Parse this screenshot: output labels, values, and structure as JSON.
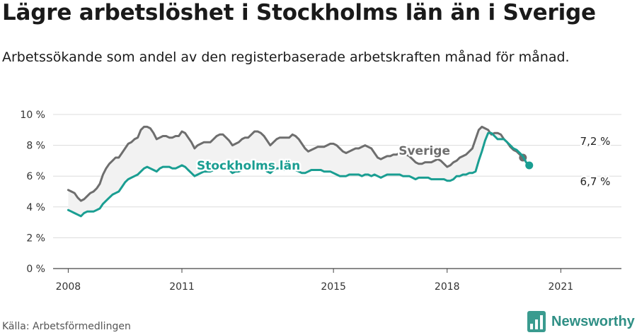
{
  "title": "Lägre arbetslöshet i Stockholms län än i Sverige",
  "subtitle": "Arbetssökande som andel av den registerbaserade arbetskraften månad för månad.",
  "source": "Källa: Arbetsförmedlingen",
  "brand": {
    "name": "Newsworthy",
    "icon": "bar-chart-logo-icon",
    "color": "#3a9b8f"
  },
  "chart_data": {
    "type": "line",
    "title": "Lägre arbetslöshet i Stockholms län än i Sverige",
    "xlabel": "",
    "ylabel": "",
    "xlim": [
      2007.6,
      2022.6
    ],
    "ylim": [
      0,
      10
    ],
    "x_ticks": [
      2008,
      2011,
      2015,
      2018,
      2021
    ],
    "x_tick_labels": [
      "2008",
      "2011",
      "2015",
      "2018",
      "2021"
    ],
    "y_ticks": [
      0,
      2,
      4,
      6,
      8,
      10
    ],
    "y_tick_labels": [
      "0 %",
      "2 %",
      "4 %",
      "6 %",
      "8 %",
      "10 %"
    ],
    "grid": true,
    "x_start": 2008.0,
    "x_step": 0.0833333,
    "series": [
      {
        "name": "Sverige",
        "label": "Sverige",
        "color": "#6e6e6e",
        "end_label": "7,2 %",
        "values": [
          5.1,
          5.0,
          4.9,
          4.6,
          4.4,
          4.5,
          4.7,
          4.9,
          5.0,
          5.2,
          5.5,
          6.1,
          6.5,
          6.8,
          7.0,
          7.2,
          7.2,
          7.5,
          7.8,
          8.1,
          8.2,
          8.4,
          8.5,
          9.0,
          9.2,
          9.2,
          9.1,
          8.8,
          8.4,
          8.5,
          8.6,
          8.6,
          8.5,
          8.5,
          8.6,
          8.6,
          8.9,
          8.8,
          8.5,
          8.2,
          7.8,
          8.0,
          8.1,
          8.2,
          8.2,
          8.2,
          8.4,
          8.6,
          8.7,
          8.7,
          8.5,
          8.3,
          8.0,
          8.1,
          8.2,
          8.4,
          8.5,
          8.5,
          8.7,
          8.9,
          8.9,
          8.8,
          8.6,
          8.3,
          8.0,
          8.2,
          8.4,
          8.5,
          8.5,
          8.5,
          8.5,
          8.7,
          8.6,
          8.4,
          8.1,
          7.8,
          7.6,
          7.7,
          7.8,
          7.9,
          7.9,
          7.9,
          8.0,
          8.1,
          8.1,
          8.0,
          7.8,
          7.6,
          7.5,
          7.6,
          7.7,
          7.8,
          7.8,
          7.9,
          8.0,
          7.9,
          7.8,
          7.5,
          7.2,
          7.1,
          7.2,
          7.3,
          7.3,
          7.4,
          7.4,
          7.5,
          7.5,
          7.4,
          7.3,
          7.1,
          6.9,
          6.8,
          6.8,
          6.9,
          6.9,
          6.9,
          7.0,
          7.1,
          7.0,
          6.8,
          6.6,
          6.7,
          6.9,
          7.0,
          7.2,
          7.3,
          7.4,
          7.6,
          7.8,
          8.4,
          9.0,
          9.2,
          9.1,
          9.0,
          8.7,
          8.8,
          8.8,
          8.7,
          8.4,
          8.2,
          7.9,
          7.7,
          7.6,
          7.4,
          7.2
        ]
      },
      {
        "name": "Stockholms län",
        "label": "Stockholms län",
        "color": "#1a9e92",
        "end_label": "6,7 %",
        "values": [
          3.8,
          3.7,
          3.6,
          3.5,
          3.4,
          3.6,
          3.7,
          3.7,
          3.7,
          3.8,
          3.9,
          4.2,
          4.4,
          4.6,
          4.8,
          4.9,
          5.0,
          5.3,
          5.6,
          5.8,
          5.9,
          6.0,
          6.1,
          6.3,
          6.5,
          6.6,
          6.5,
          6.4,
          6.3,
          6.5,
          6.6,
          6.6,
          6.6,
          6.5,
          6.5,
          6.6,
          6.7,
          6.6,
          6.4,
          6.2,
          6.0,
          6.1,
          6.2,
          6.3,
          6.3,
          6.3,
          6.4,
          6.5,
          6.6,
          6.6,
          6.5,
          6.4,
          6.2,
          6.3,
          6.3,
          6.4,
          6.5,
          6.5,
          6.6,
          6.7,
          6.7,
          6.6,
          6.5,
          6.3,
          6.2,
          6.4,
          6.5,
          6.5,
          6.4,
          6.4,
          6.4,
          6.4,
          6.4,
          6.3,
          6.2,
          6.2,
          6.3,
          6.4,
          6.4,
          6.4,
          6.4,
          6.3,
          6.3,
          6.3,
          6.2,
          6.1,
          6.0,
          6.0,
          6.0,
          6.1,
          6.1,
          6.1,
          6.1,
          6.0,
          6.1,
          6.1,
          6.0,
          6.1,
          6.0,
          5.9,
          6.0,
          6.1,
          6.1,
          6.1,
          6.1,
          6.1,
          6.0,
          6.0,
          6.0,
          5.9,
          5.8,
          5.9,
          5.9,
          5.9,
          5.9,
          5.8,
          5.8,
          5.8,
          5.8,
          5.8,
          5.7,
          5.7,
          5.8,
          6.0,
          6.0,
          6.1,
          6.1,
          6.2,
          6.2,
          6.3,
          7.0,
          7.6,
          8.3,
          8.8,
          8.8,
          8.6,
          8.4,
          8.4,
          8.4,
          8.2,
          8.0,
          7.8,
          7.7,
          7.5,
          7.3,
          6.9,
          6.7
        ]
      }
    ]
  }
}
